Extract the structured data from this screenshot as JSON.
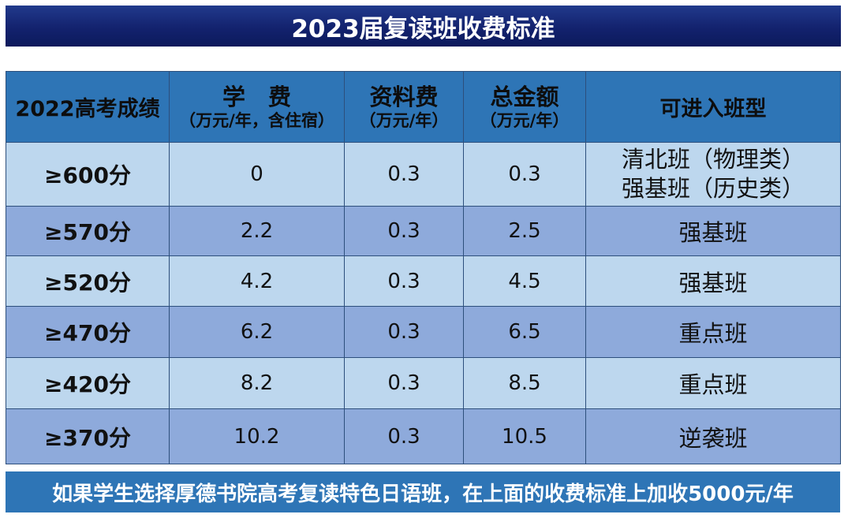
{
  "title": "2023届复读班收费标准",
  "headers": {
    "score": "2022高考成绩",
    "tuition_main": "学　费",
    "tuition_sub": "（万元/年，含住宿）",
    "materials_main": "资料费",
    "materials_sub": "（万元/年）",
    "total_main": "总金额",
    "total_sub": "（万元/年）",
    "class_type": "可进入班型"
  },
  "rows": [
    {
      "score": "≥600分",
      "tuition": "0",
      "materials": "0.3",
      "total": "0.3",
      "class_lines": [
        "清北班（物理类）",
        "强基班（历史类）"
      ]
    },
    {
      "score": "≥570分",
      "tuition": "2.2",
      "materials": "0.3",
      "total": "2.5",
      "class_lines": [
        "强基班"
      ]
    },
    {
      "score": "≥520分",
      "tuition": "4.2",
      "materials": "0.3",
      "total": "4.5",
      "class_lines": [
        "强基班"
      ]
    },
    {
      "score": "≥470分",
      "tuition": "6.2",
      "materials": "0.3",
      "total": "6.5",
      "class_lines": [
        "重点班"
      ]
    },
    {
      "score": "≥420分",
      "tuition": "8.2",
      "materials": "0.3",
      "total": "8.5",
      "class_lines": [
        "重点班"
      ]
    },
    {
      "score": "≥370分",
      "tuition": "10.2",
      "materials": "0.3",
      "total": "10.5",
      "class_lines": [
        "逆袭班"
      ]
    }
  ],
  "footer": "如果学生选择厚德书院高考复读特色日语班，在上面的收费标准上加收5000元/年",
  "colors": {
    "title_bg": "#13226e",
    "header_bg": "#2e75b6",
    "row_light": "#bdd7ee",
    "row_dark": "#8eaadb",
    "footer_bg": "#2e75b6"
  }
}
